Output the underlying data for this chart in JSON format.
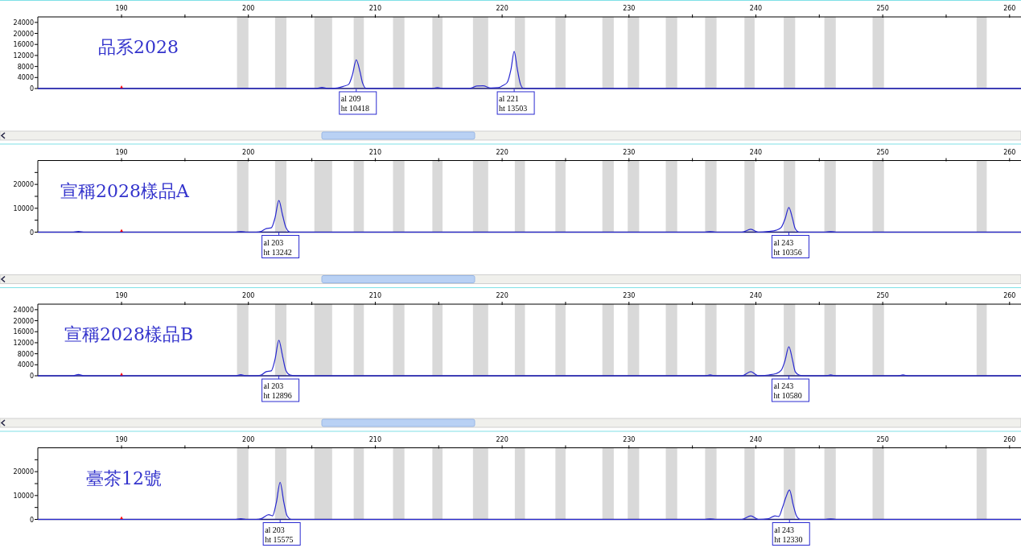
{
  "chart_data": [
    {
      "type": "line",
      "title": "品系2028",
      "xlim": [
        183.4,
        260.9
      ],
      "xticks": [
        190,
        {
          "value": 195,
          "label": null
        },
        200,
        {
          "value": 205,
          "label": null
        },
        210,
        {
          "value": 215,
          "label": null
        },
        220,
        {
          "value": 225,
          "label": null
        },
        230,
        {
          "value": 235,
          "label": null
        },
        240,
        {
          "value": 245,
          "label": null
        },
        250,
        {
          "value": 255,
          "label": null
        },
        260
      ],
      "ylim": [
        0,
        26000
      ],
      "yticks": [
        0,
        4000,
        8000,
        12000,
        16000,
        20000,
        24000
      ],
      "series": [
        {
          "color": "#2a2ad0",
          "x": [
            183.4,
            205.3,
            205.8,
            206.3,
            207.0,
            207.5,
            207.9,
            208.2,
            208.5,
            208.8,
            209.0,
            209.3,
            214.4,
            214.9,
            215.4,
            217.4,
            218.0,
            218.5,
            219.1,
            219.7,
            220.1,
            220.4,
            220.7,
            220.95,
            221.2,
            221.45,
            221.7,
            260.9
          ],
          "values": [
            0,
            0,
            400,
            0,
            200,
            800,
            1500,
            5000,
            10418,
            6000,
            2000,
            0,
            0,
            300,
            0,
            0,
            900,
            1000,
            200,
            300,
            1200,
            2200,
            7000,
            13503,
            7000,
            1500,
            0,
            0
          ]
        }
      ],
      "bands": [
        {
          "axis": "x",
          "from": 199.1,
          "to": 200.0,
          "color": "#d9d9d9"
        },
        {
          "axis": "x",
          "from": 202.1,
          "to": 203.0,
          "color": "#d9d9d9"
        },
        {
          "axis": "x",
          "from": 205.2,
          "to": 206.6,
          "color": "#d9d9d9"
        },
        {
          "axis": "x",
          "from": 208.3,
          "to": 209.1,
          "color": "#d9d9d9"
        },
        {
          "axis": "x",
          "from": 211.4,
          "to": 212.3,
          "color": "#d9d9d9"
        },
        {
          "axis": "x",
          "from": 214.5,
          "to": 215.3,
          "color": "#d9d9d9"
        },
        {
          "axis": "x",
          "from": 217.7,
          "to": 218.9,
          "color": "#d9d9d9"
        },
        {
          "axis": "x",
          "from": 221.0,
          "to": 221.8,
          "color": "#d9d9d9"
        },
        {
          "axis": "x",
          "from": 224.2,
          "to": 225.0,
          "color": "#d9d9d9"
        },
        {
          "axis": "x",
          "from": 227.9,
          "to": 228.8,
          "color": "#d9d9d9"
        },
        {
          "axis": "x",
          "from": 229.9,
          "to": 230.8,
          "color": "#d9d9d9"
        },
        {
          "axis": "x",
          "from": 232.9,
          "to": 233.8,
          "color": "#d9d9d9"
        },
        {
          "axis": "x",
          "from": 236.0,
          "to": 236.9,
          "color": "#d9d9d9"
        },
        {
          "axis": "x",
          "from": 239.1,
          "to": 239.9,
          "color": "#d9d9d9"
        },
        {
          "axis": "x",
          "from": 242.2,
          "to": 243.1,
          "color": "#d9d9d9"
        },
        {
          "axis": "x",
          "from": 245.4,
          "to": 246.3,
          "color": "#d9d9d9"
        },
        {
          "axis": "x",
          "from": 249.2,
          "to": 250.1,
          "color": "#d9d9d9"
        },
        {
          "axis": "x",
          "from": 257.4,
          "to": 258.2,
          "color": "#d9d9d9"
        }
      ],
      "annotations": [
        {
          "text": "al 209\nht 10418",
          "x": 208.5,
          "y": 0
        },
        {
          "text": "al 221\nht 13503",
          "x": 220.95,
          "y": 0
        }
      ]
    },
    {
      "type": "line",
      "title": "宣稱2028樣品A",
      "xlim": [
        183.4,
        260.9
      ],
      "xticks": [
        190,
        {
          "value": 195,
          "label": null
        },
        200,
        {
          "value": 205,
          "label": null
        },
        210,
        {
          "value": 215,
          "label": null
        },
        220,
        {
          "value": 225,
          "label": null
        },
        230,
        {
          "value": 235,
          "label": null
        },
        240,
        {
          "value": 245,
          "label": null
        },
        250,
        {
          "value": 255,
          "label": null
        },
        260
      ],
      "ylim": [
        0,
        30000
      ],
      "yticks": [
        0,
        {
          "value": 5000,
          "label": null
        },
        10000,
        {
          "value": 15000,
          "label": null
        },
        20000,
        {
          "value": 25000,
          "label": null
        }
      ],
      "series": [
        {
          "color": "#2a2ad0",
          "x": [
            183.4,
            186.2,
            186.6,
            187.0,
            199.0,
            199.4,
            199.8,
            200.6,
            201.0,
            201.4,
            201.8,
            202.1,
            202.4,
            202.7,
            202.95,
            203.3,
            236.0,
            236.4,
            236.8,
            238.9,
            239.6,
            240.2,
            241.0,
            241.6,
            242.0,
            242.3,
            242.6,
            242.9,
            243.1,
            243.4,
            245.5,
            245.9,
            246.3,
            260.9
          ],
          "values": [
            0,
            0,
            300,
            0,
            0,
            200,
            0,
            0,
            300,
            1500,
            1800,
            6000,
            13242,
            7000,
            2000,
            0,
            0,
            200,
            0,
            0,
            1200,
            0,
            300,
            800,
            2000,
            5500,
            10356,
            5500,
            1500,
            0,
            0,
            200,
            0,
            0
          ]
        }
      ],
      "bands": [
        {
          "axis": "x",
          "from": 199.1,
          "to": 200.0,
          "color": "#d9d9d9"
        },
        {
          "axis": "x",
          "from": 202.1,
          "to": 203.0,
          "color": "#d9d9d9"
        },
        {
          "axis": "x",
          "from": 205.2,
          "to": 206.6,
          "color": "#d9d9d9"
        },
        {
          "axis": "x",
          "from": 208.3,
          "to": 209.1,
          "color": "#d9d9d9"
        },
        {
          "axis": "x",
          "from": 211.4,
          "to": 212.3,
          "color": "#d9d9d9"
        },
        {
          "axis": "x",
          "from": 214.5,
          "to": 215.3,
          "color": "#d9d9d9"
        },
        {
          "axis": "x",
          "from": 217.7,
          "to": 218.9,
          "color": "#d9d9d9"
        },
        {
          "axis": "x",
          "from": 221.0,
          "to": 221.8,
          "color": "#d9d9d9"
        },
        {
          "axis": "x",
          "from": 224.2,
          "to": 225.0,
          "color": "#d9d9d9"
        },
        {
          "axis": "x",
          "from": 227.9,
          "to": 228.8,
          "color": "#d9d9d9"
        },
        {
          "axis": "x",
          "from": 229.9,
          "to": 230.8,
          "color": "#d9d9d9"
        },
        {
          "axis": "x",
          "from": 232.9,
          "to": 233.8,
          "color": "#d9d9d9"
        },
        {
          "axis": "x",
          "from": 236.0,
          "to": 236.9,
          "color": "#d9d9d9"
        },
        {
          "axis": "x",
          "from": 239.1,
          "to": 239.9,
          "color": "#d9d9d9"
        },
        {
          "axis": "x",
          "from": 242.2,
          "to": 243.1,
          "color": "#d9d9d9"
        },
        {
          "axis": "x",
          "from": 245.4,
          "to": 246.3,
          "color": "#d9d9d9"
        },
        {
          "axis": "x",
          "from": 249.2,
          "to": 250.1,
          "color": "#d9d9d9"
        },
        {
          "axis": "x",
          "from": 257.4,
          "to": 258.2,
          "color": "#d9d9d9"
        }
      ],
      "annotations": [
        {
          "text": "al 203\nht 13242",
          "x": 202.4,
          "y": 0
        },
        {
          "text": "al 243\nht 10356",
          "x": 242.6,
          "y": 0
        }
      ]
    },
    {
      "type": "line",
      "title": "宣稱2028樣品B",
      "xlim": [
        183.4,
        260.9
      ],
      "xticks": [
        190,
        {
          "value": 195,
          "label": null
        },
        200,
        {
          "value": 205,
          "label": null
        },
        210,
        {
          "value": 215,
          "label": null
        },
        220,
        {
          "value": 225,
          "label": null
        },
        230,
        {
          "value": 235,
          "label": null
        },
        240,
        {
          "value": 245,
          "label": null
        },
        250,
        {
          "value": 255,
          "label": null
        },
        260
      ],
      "ylim": [
        0,
        26000
      ],
      "yticks": [
        0,
        4000,
        8000,
        12000,
        16000,
        20000,
        24000
      ],
      "series": [
        {
          "color": "#2a2ad0",
          "x": [
            183.4,
            186.2,
            186.6,
            187.0,
            199.0,
            199.4,
            199.8,
            200.6,
            201.0,
            201.4,
            201.8,
            202.1,
            202.4,
            202.7,
            202.95,
            203.3,
            203.8,
            236.0,
            236.4,
            236.8,
            238.9,
            239.6,
            240.2,
            241.0,
            241.6,
            242.0,
            242.3,
            242.6,
            242.9,
            243.1,
            243.4,
            243.8,
            245.5,
            245.9,
            246.3,
            251.2,
            251.6,
            252.0,
            260.9
          ],
          "values": [
            0,
            0,
            500,
            0,
            0,
            400,
            0,
            0,
            300,
            1500,
            1800,
            6000,
            12896,
            7000,
            2000,
            300,
            0,
            0,
            300,
            0,
            0,
            1500,
            0,
            300,
            800,
            2000,
            5500,
            10580,
            5500,
            1500,
            300,
            0,
            0,
            300,
            0,
            0,
            300,
            0,
            0
          ]
        }
      ],
      "bands": [
        {
          "axis": "x",
          "from": 199.1,
          "to": 200.0,
          "color": "#d9d9d9"
        },
        {
          "axis": "x",
          "from": 202.1,
          "to": 203.0,
          "color": "#d9d9d9"
        },
        {
          "axis": "x",
          "from": 205.2,
          "to": 206.6,
          "color": "#d9d9d9"
        },
        {
          "axis": "x",
          "from": 208.3,
          "to": 209.1,
          "color": "#d9d9d9"
        },
        {
          "axis": "x",
          "from": 211.4,
          "to": 212.3,
          "color": "#d9d9d9"
        },
        {
          "axis": "x",
          "from": 214.5,
          "to": 215.3,
          "color": "#d9d9d9"
        },
        {
          "axis": "x",
          "from": 217.7,
          "to": 218.9,
          "color": "#d9d9d9"
        },
        {
          "axis": "x",
          "from": 221.0,
          "to": 221.8,
          "color": "#d9d9d9"
        },
        {
          "axis": "x",
          "from": 224.2,
          "to": 225.0,
          "color": "#d9d9d9"
        },
        {
          "axis": "x",
          "from": 227.9,
          "to": 228.8,
          "color": "#d9d9d9"
        },
        {
          "axis": "x",
          "from": 229.9,
          "to": 230.8,
          "color": "#d9d9d9"
        },
        {
          "axis": "x",
          "from": 232.9,
          "to": 233.8,
          "color": "#d9d9d9"
        },
        {
          "axis": "x",
          "from": 236.0,
          "to": 236.9,
          "color": "#d9d9d9"
        },
        {
          "axis": "x",
          "from": 239.1,
          "to": 239.9,
          "color": "#d9d9d9"
        },
        {
          "axis": "x",
          "from": 242.2,
          "to": 243.1,
          "color": "#d9d9d9"
        },
        {
          "axis": "x",
          "from": 245.4,
          "to": 246.3,
          "color": "#d9d9d9"
        },
        {
          "axis": "x",
          "from": 249.2,
          "to": 250.1,
          "color": "#d9d9d9"
        },
        {
          "axis": "x",
          "from": 257.4,
          "to": 258.2,
          "color": "#d9d9d9"
        }
      ],
      "annotations": [
        {
          "text": "al 203\nht 12896",
          "x": 202.4,
          "y": 0
        },
        {
          "text": "al 243\nht 10580",
          "x": 242.6,
          "y": 0
        }
      ]
    },
    {
      "type": "line",
      "title": "臺茶12號",
      "xlim": [
        183.4,
        260.9
      ],
      "xticks": [
        190,
        {
          "value": 195,
          "label": null
        },
        200,
        {
          "value": 205,
          "label": null
        },
        210,
        {
          "value": 215,
          "label": null
        },
        220,
        {
          "value": 225,
          "label": null
        },
        230,
        {
          "value": 235,
          "label": null
        },
        240,
        {
          "value": 245,
          "label": null
        },
        250,
        {
          "value": 255,
          "label": null
        },
        260
      ],
      "ylim": [
        0,
        30000
      ],
      "yticks": [
        0,
        {
          "value": 5000,
          "label": null
        },
        10000,
        {
          "value": 15000,
          "label": null
        },
        20000,
        {
          "value": 25000,
          "label": null
        }
      ],
      "series": [
        {
          "color": "#2a2ad0",
          "x": [
            183.4,
            199.0,
            199.4,
            199.8,
            200.6,
            201.0,
            201.6,
            201.9,
            202.2,
            202.5,
            202.8,
            203.05,
            203.4,
            236.0,
            236.4,
            236.8,
            238.9,
            239.6,
            240.2,
            241.0,
            241.5,
            241.8,
            242.1,
            242.35,
            242.65,
            242.95,
            243.2,
            243.5,
            245.5,
            245.9,
            246.3,
            260.9
          ],
          "values": [
            0,
            0,
            300,
            0,
            0,
            300,
            2000,
            1500,
            7000,
            15575,
            7000,
            1500,
            0,
            0,
            200,
            0,
            0,
            1500,
            0,
            300,
            1500,
            1200,
            5000,
            9000,
            12330,
            6000,
            1500,
            0,
            0,
            200,
            0,
            0
          ]
        }
      ],
      "bands": [
        {
          "axis": "x",
          "from": 199.1,
          "to": 200.0,
          "color": "#d9d9d9"
        },
        {
          "axis": "x",
          "from": 202.1,
          "to": 203.0,
          "color": "#d9d9d9"
        },
        {
          "axis": "x",
          "from": 205.2,
          "to": 206.6,
          "color": "#d9d9d9"
        },
        {
          "axis": "x",
          "from": 208.3,
          "to": 209.1,
          "color": "#d9d9d9"
        },
        {
          "axis": "x",
          "from": 211.4,
          "to": 212.3,
          "color": "#d9d9d9"
        },
        {
          "axis": "x",
          "from": 214.5,
          "to": 215.3,
          "color": "#d9d9d9"
        },
        {
          "axis": "x",
          "from": 217.7,
          "to": 218.9,
          "color": "#d9d9d9"
        },
        {
          "axis": "x",
          "from": 221.0,
          "to": 221.8,
          "color": "#d9d9d9"
        },
        {
          "axis": "x",
          "from": 224.2,
          "to": 225.0,
          "color": "#d9d9d9"
        },
        {
          "axis": "x",
          "from": 227.9,
          "to": 228.8,
          "color": "#d9d9d9"
        },
        {
          "axis": "x",
          "from": 229.9,
          "to": 230.8,
          "color": "#d9d9d9"
        },
        {
          "axis": "x",
          "from": 232.9,
          "to": 233.8,
          "color": "#d9d9d9"
        },
        {
          "axis": "x",
          "from": 236.0,
          "to": 236.9,
          "color": "#d9d9d9"
        },
        {
          "axis": "x",
          "from": 239.1,
          "to": 239.9,
          "color": "#d9d9d9"
        },
        {
          "axis": "x",
          "from": 242.2,
          "to": 243.1,
          "color": "#d9d9d9"
        },
        {
          "axis": "x",
          "from": 245.4,
          "to": 246.3,
          "color": "#d9d9d9"
        },
        {
          "axis": "x",
          "from": 249.2,
          "to": 250.1,
          "color": "#d9d9d9"
        },
        {
          "axis": "x",
          "from": 257.4,
          "to": 258.2,
          "color": "#d9d9d9"
        }
      ],
      "annotations": [
        {
          "text": "al 203\nht 15575",
          "x": 202.5,
          "y": 0
        },
        {
          "text": "al 243\nht 12330",
          "x": 242.65,
          "y": 0
        }
      ]
    }
  ]
}
